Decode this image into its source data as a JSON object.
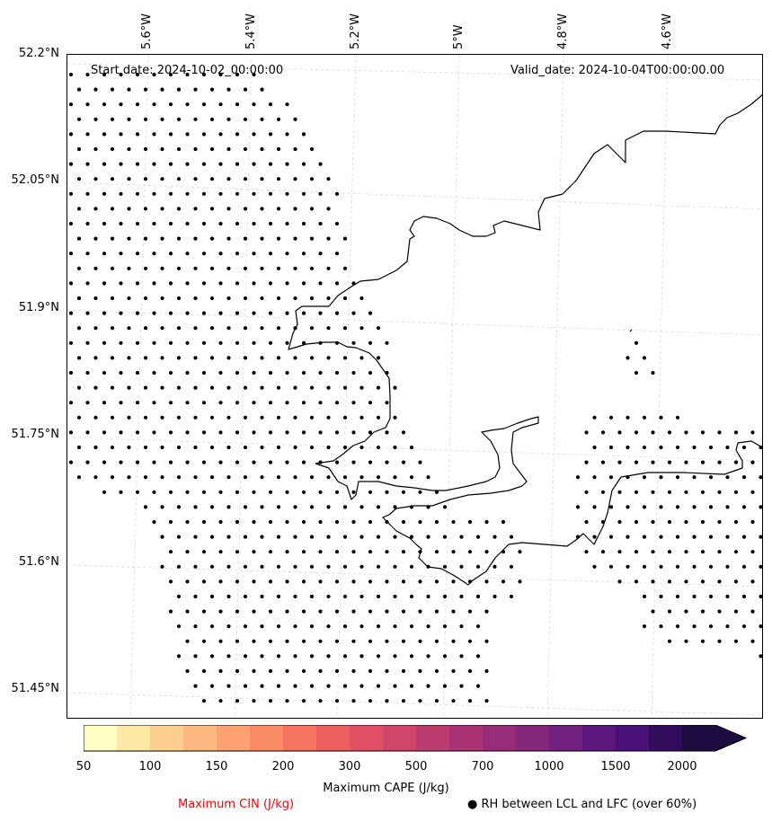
{
  "map": {
    "start_date": "Start date: 2024-10-02_00:00:00",
    "valid_date": "Valid_date: 2024-10-04T00:00:00.00",
    "lat_labels": [
      "52.2°N",
      "52.05°N",
      "51.9°N",
      "51.75°N",
      "51.6°N",
      "51.45°N"
    ],
    "lon_labels": [
      "5.6°W",
      "5.4°W",
      "5.2°W",
      "5°W",
      "4.8°W",
      "4.6°W"
    ],
    "coast_color": "#000000",
    "grid_color": "#d9d9d9",
    "dot_color": "#000000"
  },
  "colorbar": {
    "label": "Maximum CAPE (J/kg)",
    "tick_labels": [
      "50",
      "100",
      "150",
      "200",
      "300",
      "500",
      "700",
      "1000",
      "1500",
      "2000"
    ],
    "colors": [
      "#fefec4",
      "#fde8a6",
      "#fdd08f",
      "#fdb97f",
      "#fca272",
      "#fb8b67",
      "#f5745f",
      "#ec605f",
      "#e04f64",
      "#d04668",
      "#bd3c6f",
      "#aa3473",
      "#972c79",
      "#84277b",
      "#71207d",
      "#5c187d",
      "#481078",
      "#330c5e",
      "#1c0c3f"
    ]
  },
  "legend": {
    "cin_label": "Maximum CIN (J/kg)",
    "cin_color": "#ff0000",
    "rh_label": "● RH between LCL and LFC (over 60%)"
  }
}
